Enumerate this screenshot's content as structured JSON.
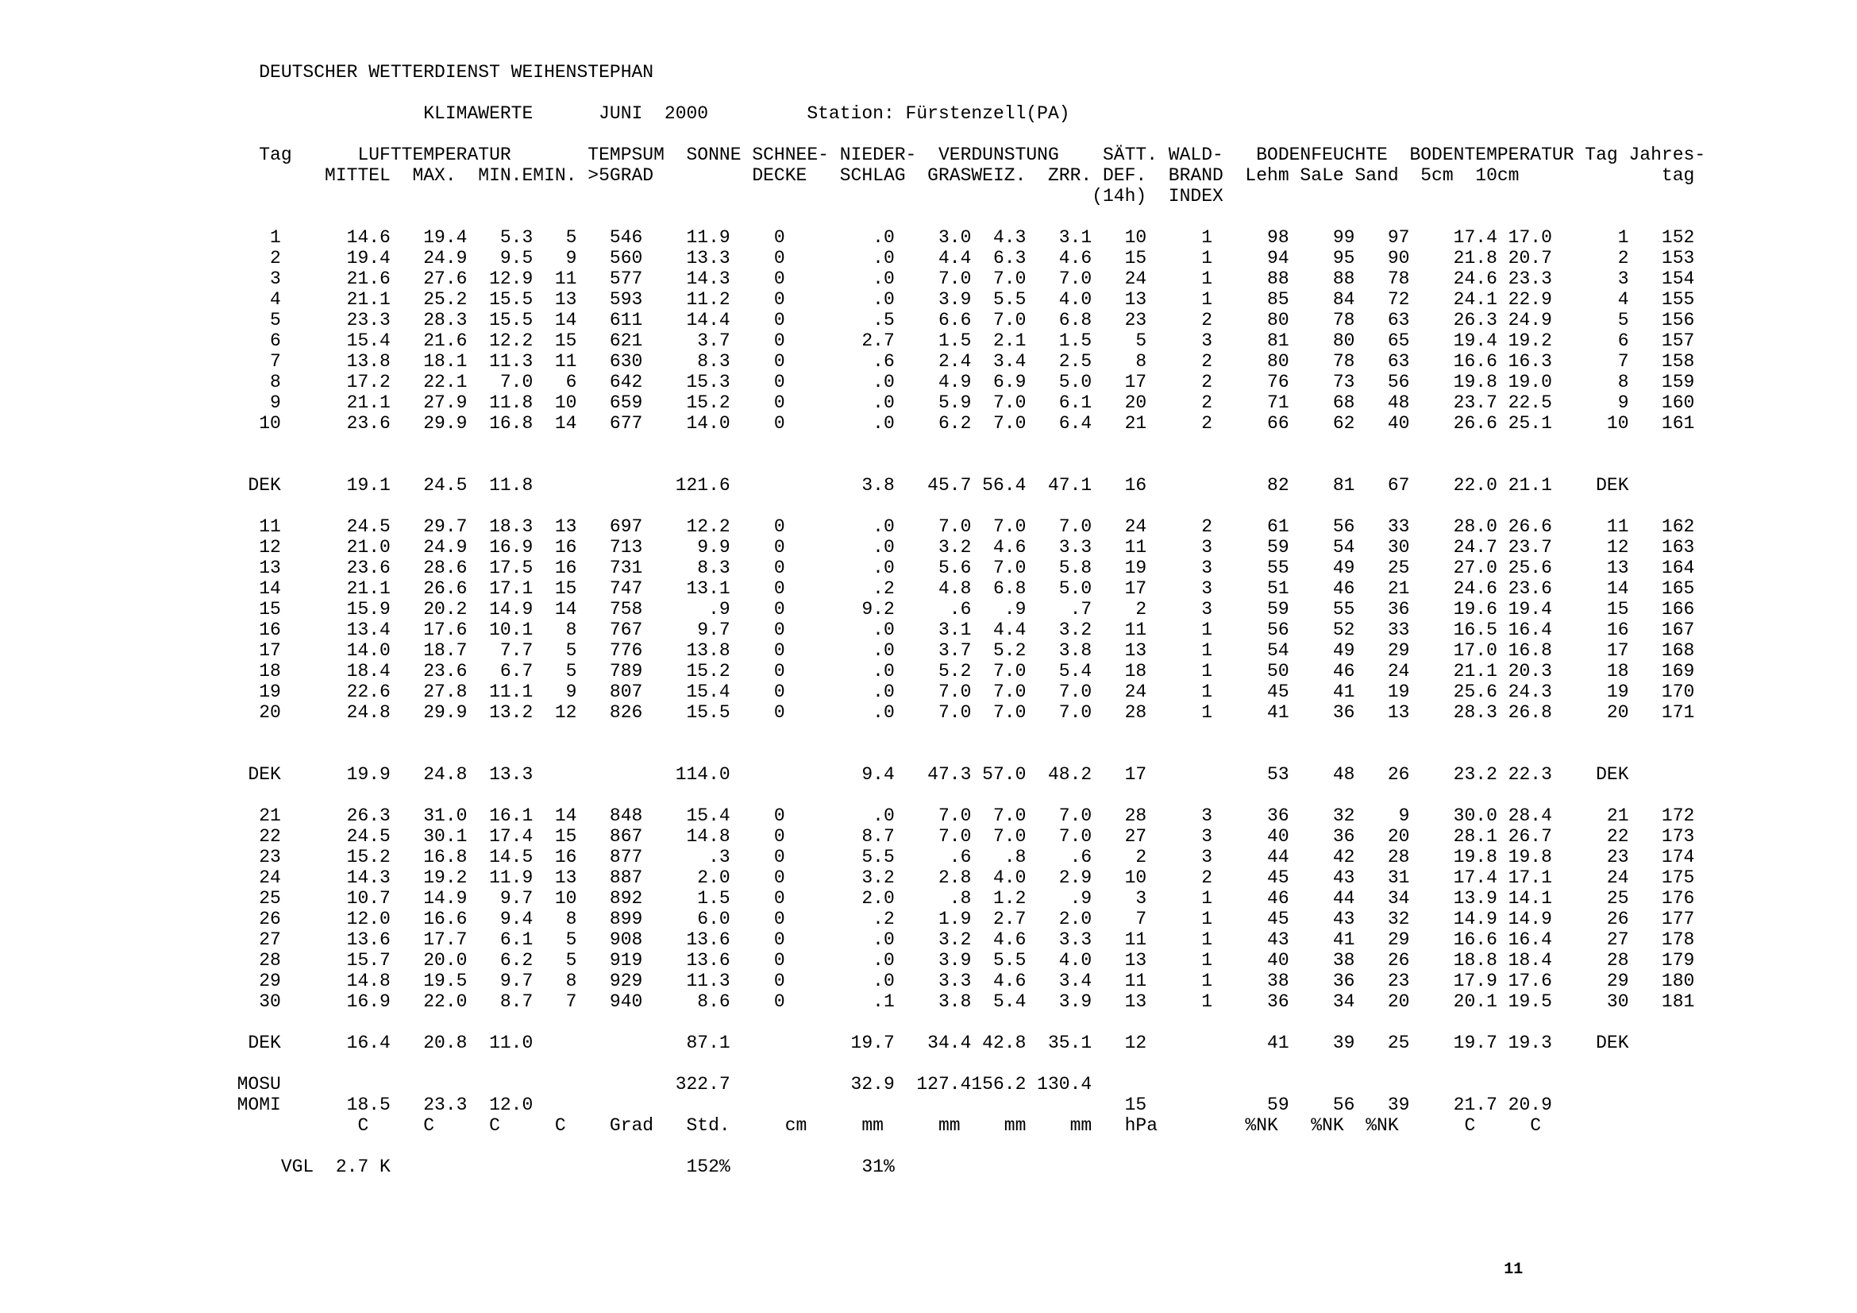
{
  "page": {
    "title": "DEUTSCHER WETTERDIENST WEIHENSTEPHAN",
    "page_number": "11",
    "text_color": "#000000",
    "background_color": "#ffffff"
  },
  "report": {
    "type": "KLIMAWERTE",
    "month": "JUNI",
    "year": "2000",
    "station": "Station: Fürstenzell(PA)"
  },
  "table": {
    "group_headers": [
      "Tag",
      "LUFTTEMPERATUR",
      "TEMPSUM",
      "SONNE",
      "SCHNEE-",
      "NIEDER-",
      "VERDUNSTUNG",
      "SÄTT.",
      "WALD-",
      "BODENFEUCHTE",
      "BODENTEMPERATUR",
      "Tag",
      "Jahres-"
    ],
    "sub_headers": [
      "MITTEL",
      "MAX.",
      "MIN.",
      "EMIN.",
      ">5GRAD",
      "DECKE",
      "SCHLAG",
      "GRAS",
      "WEIZ.",
      "ZRR.",
      "DEF.",
      "BRAND",
      "Lehm",
      "SaLe",
      "Sand",
      "5cm",
      "10cm",
      "tag"
    ],
    "sub_headers_2": [
      "(14h)",
      "INDEX"
    ],
    "column_keys": [
      "tag",
      "mittel",
      "max",
      "min",
      "emin",
      "tempsum",
      "sonne",
      "schneedecke",
      "niederschlag",
      "gras",
      "weiz",
      "zrr",
      "saett_def",
      "waldbrand_index",
      "lehm",
      "sale",
      "sand",
      "boden_5cm",
      "boden_10cm",
      "tag2",
      "jahrestag"
    ],
    "rows": [
      [
        "1",
        "14.6",
        "19.4",
        "5.3",
        "5",
        "546",
        "11.9",
        "0",
        ".0",
        "3.0",
        "4.3",
        "3.1",
        "10",
        "1",
        "98",
        "99",
        "97",
        "17.4",
        "17.0",
        "1",
        "152"
      ],
      [
        "2",
        "19.4",
        "24.9",
        "9.5",
        "9",
        "560",
        "13.3",
        "0",
        ".0",
        "4.4",
        "6.3",
        "4.6",
        "15",
        "1",
        "94",
        "95",
        "90",
        "21.8",
        "20.7",
        "2",
        "153"
      ],
      [
        "3",
        "21.6",
        "27.6",
        "12.9",
        "11",
        "577",
        "14.3",
        "0",
        ".0",
        "7.0",
        "7.0",
        "7.0",
        "24",
        "1",
        "88",
        "88",
        "78",
        "24.6",
        "23.3",
        "3",
        "154"
      ],
      [
        "4",
        "21.1",
        "25.2",
        "15.5",
        "13",
        "593",
        "11.2",
        "0",
        ".0",
        "3.9",
        "5.5",
        "4.0",
        "13",
        "1",
        "85",
        "84",
        "72",
        "24.1",
        "22.9",
        "4",
        "155"
      ],
      [
        "5",
        "23.3",
        "28.3",
        "15.5",
        "14",
        "611",
        "14.4",
        "0",
        ".5",
        "6.6",
        "7.0",
        "6.8",
        "23",
        "2",
        "80",
        "78",
        "63",
        "26.3",
        "24.9",
        "5",
        "156"
      ],
      [
        "6",
        "15.4",
        "21.6",
        "12.2",
        "15",
        "621",
        "3.7",
        "0",
        "2.7",
        "1.5",
        "2.1",
        "1.5",
        "5",
        "3",
        "81",
        "80",
        "65",
        "19.4",
        "19.2",
        "6",
        "157"
      ],
      [
        "7",
        "13.8",
        "18.1",
        "11.3",
        "11",
        "630",
        "8.3",
        "0",
        ".6",
        "2.4",
        "3.4",
        "2.5",
        "8",
        "2",
        "80",
        "78",
        "63",
        "16.6",
        "16.3",
        "7",
        "158"
      ],
      [
        "8",
        "17.2",
        "22.1",
        "7.0",
        "6",
        "642",
        "15.3",
        "0",
        ".0",
        "4.9",
        "6.9",
        "5.0",
        "17",
        "2",
        "76",
        "73",
        "56",
        "19.8",
        "19.0",
        "8",
        "159"
      ],
      [
        "9",
        "21.1",
        "27.9",
        "11.8",
        "10",
        "659",
        "15.2",
        "0",
        ".0",
        "5.9",
        "7.0",
        "6.1",
        "20",
        "2",
        "71",
        "68",
        "48",
        "23.7",
        "22.5",
        "9",
        "160"
      ],
      [
        "10",
        "23.6",
        "29.9",
        "16.8",
        "14",
        "677",
        "14.0",
        "0",
        ".0",
        "6.2",
        "7.0",
        "6.4",
        "21",
        "2",
        "66",
        "62",
        "40",
        "26.6",
        "25.1",
        "10",
        "161"
      ],
      [
        "11",
        "24.5",
        "29.7",
        "18.3",
        "13",
        "697",
        "12.2",
        "0",
        ".0",
        "7.0",
        "7.0",
        "7.0",
        "24",
        "2",
        "61",
        "56",
        "33",
        "28.0",
        "26.6",
        "11",
        "162"
      ],
      [
        "12",
        "21.0",
        "24.9",
        "16.9",
        "16",
        "713",
        "9.9",
        "0",
        ".0",
        "3.2",
        "4.6",
        "3.3",
        "11",
        "3",
        "59",
        "54",
        "30",
        "24.7",
        "23.7",
        "12",
        "163"
      ],
      [
        "13",
        "23.6",
        "28.6",
        "17.5",
        "16",
        "731",
        "8.3",
        "0",
        ".0",
        "5.6",
        "7.0",
        "5.8",
        "19",
        "3",
        "55",
        "49",
        "25",
        "27.0",
        "25.6",
        "13",
        "164"
      ],
      [
        "14",
        "21.1",
        "26.6",
        "17.1",
        "15",
        "747",
        "13.1",
        "0",
        ".2",
        "4.8",
        "6.8",
        "5.0",
        "17",
        "3",
        "51",
        "46",
        "21",
        "24.6",
        "23.6",
        "14",
        "165"
      ],
      [
        "15",
        "15.9",
        "20.2",
        "14.9",
        "14",
        "758",
        ".9",
        "0",
        "9.2",
        ".6",
        ".9",
        ".7",
        "2",
        "3",
        "59",
        "55",
        "36",
        "19.6",
        "19.4",
        "15",
        "166"
      ],
      [
        "16",
        "13.4",
        "17.6",
        "10.1",
        "8",
        "767",
        "9.7",
        "0",
        ".0",
        "3.1",
        "4.4",
        "3.2",
        "11",
        "1",
        "56",
        "52",
        "33",
        "16.5",
        "16.4",
        "16",
        "167"
      ],
      [
        "17",
        "14.0",
        "18.7",
        "7.7",
        "5",
        "776",
        "13.8",
        "0",
        ".0",
        "3.7",
        "5.2",
        "3.8",
        "13",
        "1",
        "54",
        "49",
        "29",
        "17.0",
        "16.8",
        "17",
        "168"
      ],
      [
        "18",
        "18.4",
        "23.6",
        "6.7",
        "5",
        "789",
        "15.2",
        "0",
        ".0",
        "5.2",
        "7.0",
        "5.4",
        "18",
        "1",
        "50",
        "46",
        "24",
        "21.1",
        "20.3",
        "18",
        "169"
      ],
      [
        "19",
        "22.6",
        "27.8",
        "11.1",
        "9",
        "807",
        "15.4",
        "0",
        ".0",
        "7.0",
        "7.0",
        "7.0",
        "24",
        "1",
        "45",
        "41",
        "19",
        "25.6",
        "24.3",
        "19",
        "170"
      ],
      [
        "20",
        "24.8",
        "29.9",
        "13.2",
        "12",
        "826",
        "15.5",
        "0",
        ".0",
        "7.0",
        "7.0",
        "7.0",
        "28",
        "1",
        "41",
        "36",
        "13",
        "28.3",
        "26.8",
        "20",
        "171"
      ],
      [
        "21",
        "26.3",
        "31.0",
        "16.1",
        "14",
        "848",
        "15.4",
        "0",
        ".0",
        "7.0",
        "7.0",
        "7.0",
        "28",
        "3",
        "36",
        "32",
        "9",
        "30.0",
        "28.4",
        "21",
        "172"
      ],
      [
        "22",
        "24.5",
        "30.1",
        "17.4",
        "15",
        "867",
        "14.8",
        "0",
        "8.7",
        "7.0",
        "7.0",
        "7.0",
        "27",
        "3",
        "40",
        "36",
        "20",
        "28.1",
        "26.7",
        "22",
        "173"
      ],
      [
        "23",
        "15.2",
        "16.8",
        "14.5",
        "16",
        "877",
        ".3",
        "0",
        "5.5",
        ".6",
        ".8",
        ".6",
        "2",
        "3",
        "44",
        "42",
        "28",
        "19.8",
        "19.8",
        "23",
        "174"
      ],
      [
        "24",
        "14.3",
        "19.2",
        "11.9",
        "13",
        "887",
        "2.0",
        "0",
        "3.2",
        "2.8",
        "4.0",
        "2.9",
        "10",
        "2",
        "45",
        "43",
        "31",
        "17.4",
        "17.1",
        "24",
        "175"
      ],
      [
        "25",
        "10.7",
        "14.9",
        "9.7",
        "10",
        "892",
        "1.5",
        "0",
        "2.0",
        ".8",
        "1.2",
        ".9",
        "3",
        "1",
        "46",
        "44",
        "34",
        "13.9",
        "14.1",
        "25",
        "176"
      ],
      [
        "26",
        "12.0",
        "16.6",
        "9.4",
        "8",
        "899",
        "6.0",
        "0",
        ".2",
        "1.9",
        "2.7",
        "2.0",
        "7",
        "1",
        "45",
        "43",
        "32",
        "14.9",
        "14.9",
        "26",
        "177"
      ],
      [
        "27",
        "13.6",
        "17.7",
        "6.1",
        "5",
        "908",
        "13.6",
        "0",
        ".0",
        "3.2",
        "4.6",
        "3.3",
        "11",
        "1",
        "43",
        "41",
        "29",
        "16.6",
        "16.4",
        "27",
        "178"
      ],
      [
        "28",
        "15.7",
        "20.0",
        "6.2",
        "5",
        "919",
        "13.6",
        "0",
        ".0",
        "3.9",
        "5.5",
        "4.0",
        "13",
        "1",
        "40",
        "38",
        "26",
        "18.8",
        "18.4",
        "28",
        "179"
      ],
      [
        "29",
        "14.8",
        "19.5",
        "9.7",
        "8",
        "929",
        "11.3",
        "0",
        ".0",
        "3.3",
        "4.6",
        "3.4",
        "11",
        "1",
        "38",
        "36",
        "23",
        "17.9",
        "17.6",
        "29",
        "180"
      ],
      [
        "30",
        "16.9",
        "22.0",
        "8.7",
        "7",
        "940",
        "8.6",
        "0",
        ".1",
        "3.8",
        "5.4",
        "3.9",
        "13",
        "1",
        "36",
        "34",
        "20",
        "20.1",
        "19.5",
        "30",
        "181"
      ]
    ],
    "dek_rows": [
      [
        "DEK",
        "19.1",
        "24.5",
        "11.8",
        "",
        "",
        "121.6",
        "",
        "3.8",
        "45.7",
        "56.4",
        "47.1",
        "16",
        "",
        "82",
        "81",
        "67",
        "22.0",
        "21.1",
        "DEK",
        ""
      ],
      [
        "DEK",
        "19.9",
        "24.8",
        "13.3",
        "",
        "",
        "114.0",
        "",
        "9.4",
        "47.3",
        "57.0",
        "48.2",
        "17",
        "",
        "53",
        "48",
        "26",
        "23.2",
        "22.3",
        "DEK",
        ""
      ],
      [
        "DEK",
        "16.4",
        "20.8",
        "11.0",
        "",
        "",
        "87.1",
        "",
        "19.7",
        "34.4",
        "42.8",
        "35.1",
        "12",
        "",
        "41",
        "39",
        "25",
        "19.7",
        "19.3",
        "DEK",
        ""
      ]
    ],
    "mosu_row": [
      "MOSU",
      "",
      "",
      "",
      "",
      "",
      "322.7",
      "",
      "32.9",
      "127.4",
      "156.2",
      "130.4",
      "",
      "",
      "",
      "",
      "",
      "",
      "",
      "",
      ""
    ],
    "momi_row": [
      "MOMI",
      "18.5",
      "23.3",
      "12.0",
      "",
      "",
      "",
      "",
      "",
      "",
      "",
      "",
      "15",
      "",
      "59",
      "56",
      "39",
      "21.7",
      "20.9",
      "",
      ""
    ],
    "units": [
      "C",
      "C",
      "C",
      "C",
      "Grad",
      "Std.",
      "cm",
      "mm",
      "mm",
      "mm",
      "mm",
      "hPa",
      "%NK",
      "%NK",
      "%NK",
      "C",
      "C"
    ],
    "vgl": {
      "label": "VGL",
      "value": "2.7",
      "unit": "K",
      "tempsum_pct": "152%",
      "nieder_pct": "31%"
    }
  }
}
